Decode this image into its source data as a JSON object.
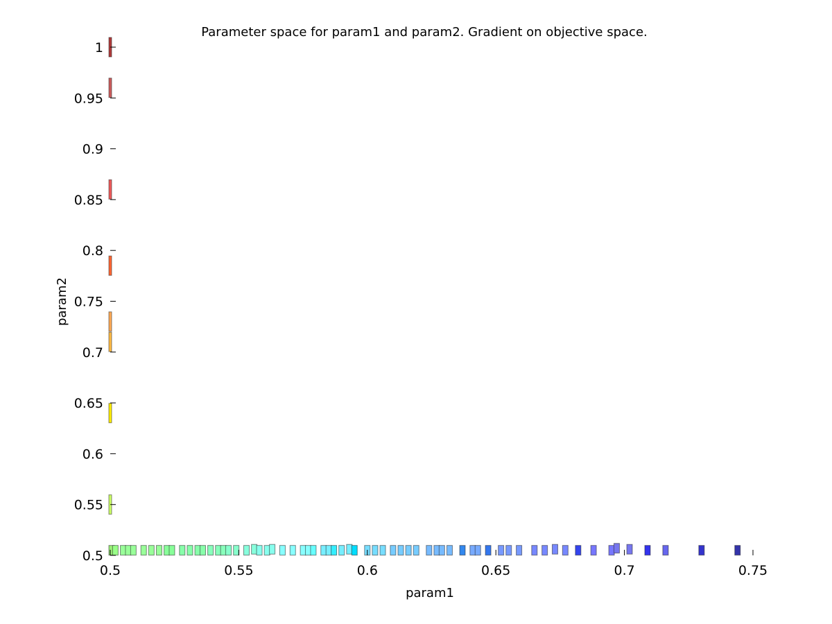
{
  "chart_data": {
    "type": "scatter",
    "title": "Parameter space for param1 and param2. Gradient on objective space.",
    "xlabel": "param1",
    "ylabel": "param2",
    "xlim": [
      0.5,
      0.75
    ],
    "ylim": [
      0.5,
      1.0
    ],
    "xticks": [
      0.5,
      0.55,
      0.6,
      0.65,
      0.7,
      0.75
    ],
    "xtick_labels": [
      "0.5",
      "0.55",
      "0.6",
      "0.65",
      "0.7",
      "0.75"
    ],
    "yticks": [
      0.5,
      0.55,
      0.6,
      0.65,
      0.7,
      0.75,
      0.8,
      0.85,
      0.9,
      0.95,
      1.0
    ],
    "ytick_labels": [
      "0.5",
      "0.55",
      "0.6",
      "0.65",
      "0.7",
      "0.75",
      "0.8",
      "0.85",
      "0.9",
      "0.95",
      "1"
    ],
    "grid": false,
    "legend": "none",
    "colormap": "jet",
    "series": [
      {
        "points": [
          {
            "x": 0.5,
            "y": 1.0,
            "color": "#b03a3a"
          },
          {
            "x": 0.5,
            "y": 0.96,
            "color": "#cc5c5c"
          },
          {
            "x": 0.5,
            "y": 0.86,
            "color": "#ee5a5a"
          },
          {
            "x": 0.5,
            "y": 0.785,
            "color": "#ff6633"
          },
          {
            "x": 0.5,
            "y": 0.73,
            "color": "#ffaa55"
          },
          {
            "x": 0.5,
            "y": 0.71,
            "color": "#ffbb44"
          },
          {
            "x": 0.5,
            "y": 0.64,
            "color": "#ffee00"
          },
          {
            "x": 0.5,
            "y": 0.55,
            "color": "#ccff66"
          },
          {
            "x": 0.5,
            "y": 0.505,
            "color": "#99ee77"
          },
          {
            "x": 0.502,
            "y": 0.505,
            "color": "#99ff88"
          },
          {
            "x": 0.505,
            "y": 0.505,
            "color": "#99ff99"
          },
          {
            "x": 0.507,
            "y": 0.505,
            "color": "#99ff99"
          },
          {
            "x": 0.509,
            "y": 0.505,
            "color": "#99ff99"
          },
          {
            "x": 0.513,
            "y": 0.505,
            "color": "#99ff99"
          },
          {
            "x": 0.516,
            "y": 0.505,
            "color": "#99ff99"
          },
          {
            "x": 0.519,
            "y": 0.505,
            "color": "#99ff99"
          },
          {
            "x": 0.522,
            "y": 0.505,
            "color": "#88ff99"
          },
          {
            "x": 0.524,
            "y": 0.505,
            "color": "#88ff99"
          },
          {
            "x": 0.528,
            "y": 0.505,
            "color": "#88ffaa"
          },
          {
            "x": 0.531,
            "y": 0.505,
            "color": "#88ffaa"
          },
          {
            "x": 0.534,
            "y": 0.505,
            "color": "#88ffaa"
          },
          {
            "x": 0.536,
            "y": 0.505,
            "color": "#88ffaa"
          },
          {
            "x": 0.539,
            "y": 0.505,
            "color": "#88ffbb"
          },
          {
            "x": 0.542,
            "y": 0.505,
            "color": "#88ffbb"
          },
          {
            "x": 0.544,
            "y": 0.505,
            "color": "#88ffbb"
          },
          {
            "x": 0.546,
            "y": 0.505,
            "color": "#88ffcc"
          },
          {
            "x": 0.549,
            "y": 0.505,
            "color": "#88ffcc"
          },
          {
            "x": 0.553,
            "y": 0.505,
            "color": "#88ffdd"
          },
          {
            "x": 0.556,
            "y": 0.506,
            "color": "#88ffdd"
          },
          {
            "x": 0.558,
            "y": 0.505,
            "color": "#88ffee"
          },
          {
            "x": 0.561,
            "y": 0.505,
            "color": "#88ffee"
          },
          {
            "x": 0.563,
            "y": 0.506,
            "color": "#88ffee"
          },
          {
            "x": 0.567,
            "y": 0.505,
            "color": "#88ffff"
          },
          {
            "x": 0.571,
            "y": 0.505,
            "color": "#88ffff"
          },
          {
            "x": 0.575,
            "y": 0.505,
            "color": "#88ffff"
          },
          {
            "x": 0.577,
            "y": 0.505,
            "color": "#88ffff"
          },
          {
            "x": 0.579,
            "y": 0.505,
            "color": "#66ffff"
          },
          {
            "x": 0.583,
            "y": 0.505,
            "color": "#77eeff"
          },
          {
            "x": 0.585,
            "y": 0.505,
            "color": "#77eeff"
          },
          {
            "x": 0.587,
            "y": 0.505,
            "color": "#33eeff"
          },
          {
            "x": 0.59,
            "y": 0.505,
            "color": "#77eeff"
          },
          {
            "x": 0.593,
            "y": 0.506,
            "color": "#77eeff"
          },
          {
            "x": 0.595,
            "y": 0.505,
            "color": "#00ddff"
          },
          {
            "x": 0.6,
            "y": 0.505,
            "color": "#77ddff"
          },
          {
            "x": 0.603,
            "y": 0.505,
            "color": "#77ddff"
          },
          {
            "x": 0.606,
            "y": 0.505,
            "color": "#77ddff"
          },
          {
            "x": 0.61,
            "y": 0.505,
            "color": "#77ccff"
          },
          {
            "x": 0.613,
            "y": 0.505,
            "color": "#77ccff"
          },
          {
            "x": 0.616,
            "y": 0.505,
            "color": "#77ccff"
          },
          {
            "x": 0.619,
            "y": 0.505,
            "color": "#77ccff"
          },
          {
            "x": 0.624,
            "y": 0.505,
            "color": "#77bbff"
          },
          {
            "x": 0.627,
            "y": 0.505,
            "color": "#77bbff"
          },
          {
            "x": 0.629,
            "y": 0.505,
            "color": "#77bbff"
          },
          {
            "x": 0.632,
            "y": 0.505,
            "color": "#77bbff"
          },
          {
            "x": 0.637,
            "y": 0.505,
            "color": "#3388ee"
          },
          {
            "x": 0.641,
            "y": 0.505,
            "color": "#77aaff"
          },
          {
            "x": 0.643,
            "y": 0.505,
            "color": "#77aaff"
          },
          {
            "x": 0.647,
            "y": 0.505,
            "color": "#3377ee"
          },
          {
            "x": 0.652,
            "y": 0.505,
            "color": "#7799ff"
          },
          {
            "x": 0.655,
            "y": 0.505,
            "color": "#7799ff"
          },
          {
            "x": 0.659,
            "y": 0.505,
            "color": "#7799ff"
          },
          {
            "x": 0.665,
            "y": 0.505,
            "color": "#7788ff"
          },
          {
            "x": 0.669,
            "y": 0.505,
            "color": "#7788ff"
          },
          {
            "x": 0.673,
            "y": 0.506,
            "color": "#7788ff"
          },
          {
            "x": 0.677,
            "y": 0.505,
            "color": "#7788ff"
          },
          {
            "x": 0.682,
            "y": 0.505,
            "color": "#3344ee"
          },
          {
            "x": 0.688,
            "y": 0.505,
            "color": "#7777ff"
          },
          {
            "x": 0.695,
            "y": 0.505,
            "color": "#7777ff"
          },
          {
            "x": 0.697,
            "y": 0.507,
            "color": "#7777ee"
          },
          {
            "x": 0.702,
            "y": 0.506,
            "color": "#7777ee"
          },
          {
            "x": 0.709,
            "y": 0.505,
            "color": "#3333ee"
          },
          {
            "x": 0.716,
            "y": 0.505,
            "color": "#6666ee"
          },
          {
            "x": 0.73,
            "y": 0.505,
            "color": "#3333cc"
          },
          {
            "x": 0.744,
            "y": 0.505,
            "color": "#3333aa"
          }
        ]
      }
    ]
  }
}
